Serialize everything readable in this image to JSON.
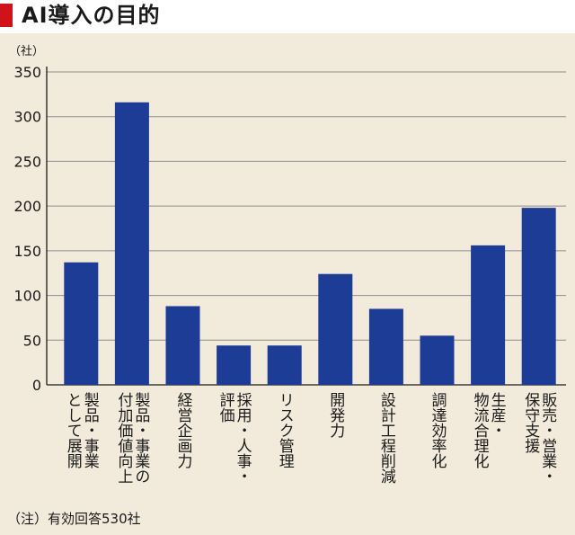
{
  "title": "AI導入の目的",
  "unit_label": "（社）",
  "note": "（注）有効回答530社",
  "colors": {
    "bar": "#1c3c96",
    "accent": "#d0121b",
    "background": "#f2eadb"
  },
  "chart_data": {
    "type": "bar",
    "title": "AI導入の目的",
    "xlabel": "",
    "ylabel": "（社）",
    "ylim": [
      0,
      350
    ],
    "yticks": [
      0,
      50,
      100,
      150,
      200,
      250,
      300,
      350
    ],
    "grid": true,
    "categories": [
      [
        "製品・事業",
        "として展開"
      ],
      [
        "製品・事業の",
        "付加価値向上"
      ],
      [
        "経営企画力"
      ],
      [
        "採用・人事・",
        "評価"
      ],
      [
        "リスク管理"
      ],
      [
        "開発力"
      ],
      [
        "設計工程削減"
      ],
      [
        "調達効率化"
      ],
      [
        "生産・",
        "物流合理化"
      ],
      [
        "販売・営業・",
        "保守支援"
      ]
    ],
    "values": [
      137,
      316,
      88,
      44,
      44,
      124,
      85,
      55,
      156,
      198
    ]
  }
}
